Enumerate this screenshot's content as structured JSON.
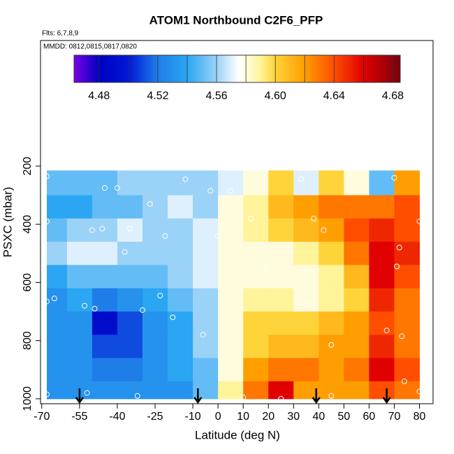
{
  "chart_data": {
    "type": "heatmap",
    "title": "ATOM1 Northbound C2F6_PFP",
    "subtitle": "Flts: 6,7,8,9",
    "annotation": "MMDD: 0812,0815,0817,0820",
    "x_label": "Latitude (deg N)",
    "y_label": "PSXC (mbar)",
    "xlim": [
      -70.5,
      85.4
    ],
    "ylim": [
      1017,
      -232
    ],
    "xticks": [
      -70,
      -55,
      -40,
      -25,
      -10,
      0,
      10,
      20,
      30,
      40,
      50,
      60,
      70,
      80
    ],
    "yticks": [
      200,
      400,
      600,
      800,
      1000
    ],
    "x_edges": [
      -68,
      -60,
      -50,
      -40,
      -30,
      -20,
      -10,
      0,
      10,
      20,
      30,
      40,
      50,
      60,
      70,
      80
    ],
    "y_edges": [
      215,
      300,
      380,
      460,
      540,
      620,
      700,
      780,
      860,
      940,
      1000
    ],
    "z": [
      [
        4.55,
        4.55,
        4.55,
        4.56,
        4.56,
        4.56,
        4.56,
        4.57,
        4.58,
        4.6,
        4.57,
        4.6,
        4.58,
        4.55,
        4.62
      ],
      [
        4.54,
        4.54,
        4.55,
        4.55,
        4.56,
        4.57,
        4.56,
        4.58,
        4.59,
        4.61,
        4.62,
        4.63,
        4.63,
        4.63,
        4.64
      ],
      [
        4.55,
        4.56,
        4.56,
        4.57,
        4.56,
        4.56,
        4.57,
        4.58,
        4.59,
        4.6,
        4.61,
        4.62,
        4.64,
        4.65,
        4.64
      ],
      [
        4.56,
        4.57,
        4.57,
        4.56,
        4.56,
        4.56,
        4.57,
        4.58,
        4.58,
        4.58,
        4.59,
        4.6,
        4.63,
        4.66,
        4.65
      ],
      [
        4.54,
        4.55,
        4.55,
        4.55,
        4.55,
        4.56,
        4.57,
        4.58,
        4.58,
        4.58,
        4.58,
        4.59,
        4.61,
        4.66,
        4.64
      ],
      [
        4.53,
        4.54,
        4.52,
        4.53,
        4.54,
        4.55,
        4.56,
        4.58,
        4.59,
        4.59,
        4.58,
        4.59,
        4.6,
        4.65,
        4.63
      ],
      [
        4.53,
        4.53,
        4.49,
        4.51,
        4.53,
        4.54,
        4.56,
        4.58,
        4.6,
        4.6,
        4.6,
        4.61,
        4.62,
        4.64,
        4.63
      ],
      [
        4.53,
        4.53,
        4.51,
        4.51,
        4.53,
        4.54,
        4.56,
        4.58,
        4.6,
        4.61,
        4.61,
        4.62,
        4.62,
        4.65,
        4.63
      ],
      [
        4.53,
        4.53,
        4.52,
        4.52,
        4.53,
        4.54,
        4.55,
        4.58,
        4.62,
        4.63,
        4.63,
        4.62,
        4.63,
        4.66,
        4.64
      ],
      [
        4.53,
        4.53,
        4.53,
        4.53,
        4.53,
        4.53,
        4.55,
        4.59,
        4.63,
        4.66,
        4.62,
        4.62,
        4.62,
        4.64,
        4.63
      ]
    ],
    "colorbar_lim": [
      4.463,
      4.685
    ],
    "colorbar_ticks": [
      {
        "value": 4.48,
        "label": "4.48"
      },
      {
        "value": 4.52,
        "label": "4.52"
      },
      {
        "value": 4.56,
        "label": "4.56"
      },
      {
        "value": 4.6,
        "label": "4.60"
      },
      {
        "value": 4.64,
        "label": "4.64"
      },
      {
        "value": 4.68,
        "label": "4.68"
      }
    ],
    "colorscale": [
      [
        4.463,
        "#7a00e6"
      ],
      [
        4.48,
        "#0000c0"
      ],
      [
        4.5,
        "#0018d8"
      ],
      [
        4.52,
        "#1f7de8"
      ],
      [
        4.54,
        "#2aa6f2"
      ],
      [
        4.56,
        "#9bd2f8"
      ],
      [
        4.575,
        "#ffffff"
      ],
      [
        4.59,
        "#fff49a"
      ],
      [
        4.6,
        "#ffd43a"
      ],
      [
        4.62,
        "#ff9e00"
      ],
      [
        4.64,
        "#ff4e00"
      ],
      [
        4.66,
        "#e00000"
      ],
      [
        4.685,
        "#7a0010"
      ]
    ],
    "arrows": [
      -55,
      -8,
      39,
      67
    ],
    "samples": [
      {
        "lat": -68,
        "p": 235
      },
      {
        "lat": -68,
        "p": 390
      },
      {
        "lat": -68,
        "p": 665
      },
      {
        "lat": -65,
        "p": 655
      },
      {
        "lat": -53,
        "p": 680
      },
      {
        "lat": -49,
        "p": 690
      },
      {
        "lat": -45,
        "p": 275
      },
      {
        "lat": -40,
        "p": 275
      },
      {
        "lat": -50,
        "p": 420
      },
      {
        "lat": -46,
        "p": 415
      },
      {
        "lat": -35,
        "p": 415
      },
      {
        "lat": -37,
        "p": 495
      },
      {
        "lat": -27,
        "p": 330
      },
      {
        "lat": -21,
        "p": 440
      },
      {
        "lat": -23,
        "p": 645
      },
      {
        "lat": -30,
        "p": 695
      },
      {
        "lat": -18,
        "p": 720
      },
      {
        "lat": -6,
        "p": 780
      },
      {
        "lat": -13,
        "p": 245
      },
      {
        "lat": -3,
        "p": 285
      },
      {
        "lat": 5,
        "p": 285
      },
      {
        "lat": 0,
        "p": 440
      },
      {
        "lat": 13,
        "p": 380
      },
      {
        "lat": 19,
        "p": 555
      },
      {
        "lat": 33,
        "p": 245
      },
      {
        "lat": 38,
        "p": 380
      },
      {
        "lat": 42,
        "p": 420
      },
      {
        "lat": 35,
        "p": 675
      },
      {
        "lat": 45,
        "p": 815
      },
      {
        "lat": 67,
        "p": 765
      },
      {
        "lat": 70,
        "p": 240
      },
      {
        "lat": 71,
        "p": 545
      },
      {
        "lat": 72,
        "p": 480
      },
      {
        "lat": 73,
        "p": 785
      },
      {
        "lat": 74,
        "p": 940
      },
      {
        "lat": 80,
        "p": 390
      },
      {
        "lat": -68,
        "p": 985
      },
      {
        "lat": -52,
        "p": 980
      },
      {
        "lat": -32,
        "p": 990
      },
      {
        "lat": 10,
        "p": 995
      },
      {
        "lat": 25,
        "p": 1000
      },
      {
        "lat": 45,
        "p": 990
      },
      {
        "lat": 80,
        "p": 975
      }
    ]
  }
}
